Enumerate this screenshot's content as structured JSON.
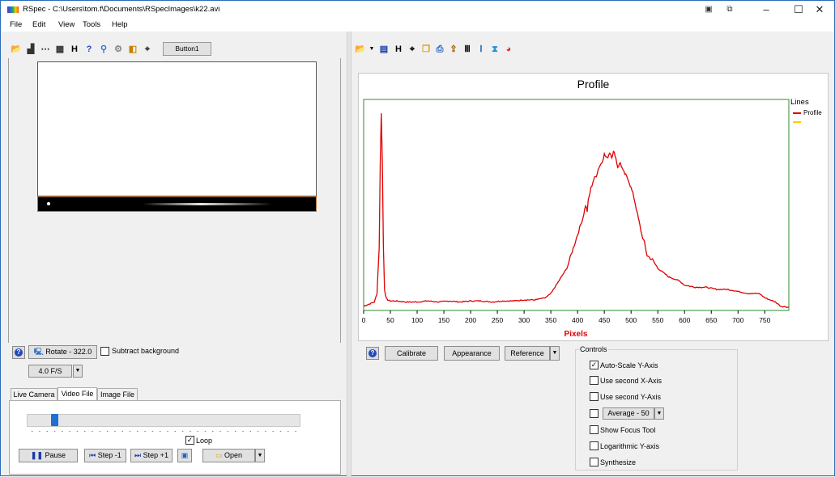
{
  "window": {
    "title": "RSpec - C:\\Users\\tom.f\\Documents\\RSpecImages\\k22.avi"
  },
  "menu": [
    "File",
    "Edit",
    "View",
    "Tools",
    "Help"
  ],
  "left_toolbar": {
    "button1_label": "Button1"
  },
  "left_bottom": {
    "rotate_label": "Rotate - 322.0",
    "subtract_background_label": "Subtract background",
    "fps_value": "4.0 F/S",
    "tabs": [
      "Live Camera",
      "Video File",
      "Image File"
    ],
    "active_tab": "Video File",
    "playback_position": 0.09,
    "loop_label": "Loop",
    "pause_label": "Pause",
    "step_back_label": "Step -1",
    "step_fwd_label": "Step +1",
    "open_label": "Open"
  },
  "right_bottom": {
    "calibrate_label": "Calibrate",
    "appearance_label": "Appearance",
    "reference_label": "Reference",
    "controls_title": "Controls",
    "auto_scale_label": "Auto-Scale Y-Axis",
    "second_x_label": "Use second X-Axis",
    "second_y_label": "Use second Y-Axis",
    "average_label": "Average - 50",
    "focus_label": "Show Focus Tool",
    "log_y_label": "Logarithmic Y-axis",
    "synthesize_label": "Synthesize"
  },
  "colors": {
    "accent": "#2b6cb8",
    "plot_border": "#2e8b2e",
    "series": "#e00000",
    "xlabel": "#e00000",
    "legend_second": "#f5d000"
  },
  "chart_data": {
    "type": "line",
    "title": "Profile",
    "xlabel": "Pixels",
    "ylabel": "",
    "xlim": [
      0,
      795
    ],
    "xticks": [
      0,
      50,
      100,
      150,
      200,
      250,
      300,
      350,
      400,
      450,
      500,
      550,
      600,
      650,
      700,
      750
    ],
    "xtick_labels": [
      "0",
      "50",
      "100",
      "150",
      "200",
      "250",
      "300",
      "350",
      "400",
      "450",
      "500",
      "550",
      "600",
      "650",
      "700",
      "750"
    ],
    "ylim": [
      0,
      100
    ],
    "legend": {
      "title": "Lines",
      "position": "right",
      "entries": [
        "Profile",
        ""
      ]
    },
    "series": [
      {
        "name": "Profile",
        "x": [
          0,
          10,
          20,
          25,
          29,
          31,
          33,
          35,
          37,
          39,
          42,
          45,
          50,
          60,
          80,
          100,
          120,
          140,
          160,
          180,
          200,
          220,
          240,
          260,
          280,
          300,
          320,
          340,
          350,
          360,
          370,
          380,
          390,
          400,
          410,
          415,
          418,
          420,
          425,
          430,
          435,
          440,
          445,
          450,
          455,
          460,
          464,
          467,
          470,
          475,
          480,
          485,
          490,
          495,
          500,
          505,
          510,
          515,
          520,
          525,
          530,
          540,
          550,
          560,
          570,
          580,
          590,
          600,
          620,
          640,
          660,
          680,
          700,
          720,
          740,
          750,
          760,
          770,
          780,
          795
        ],
        "y": [
          2,
          3,
          4,
          8,
          30,
          70,
          94,
          70,
          30,
          10,
          6,
          5,
          4.5,
          4.5,
          4,
          4,
          4.5,
          4,
          4.5,
          4,
          4.5,
          4.5,
          4,
          4.5,
          4.5,
          5,
          5,
          6,
          8,
          12,
          16,
          20,
          28,
          36,
          44,
          50,
          47,
          52,
          58,
          62,
          64,
          68,
          70,
          74,
          72,
          75,
          73,
          75,
          74,
          68,
          70,
          66,
          64,
          62,
          58,
          54,
          48,
          42,
          36,
          32,
          26,
          24,
          20,
          18,
          16,
          15,
          14,
          12,
          11,
          11,
          10,
          10,
          9,
          8,
          8,
          6,
          5,
          4,
          2,
          1.5
        ]
      },
      {
        "name": "",
        "x": [],
        "y": []
      }
    ],
    "grid": false
  }
}
